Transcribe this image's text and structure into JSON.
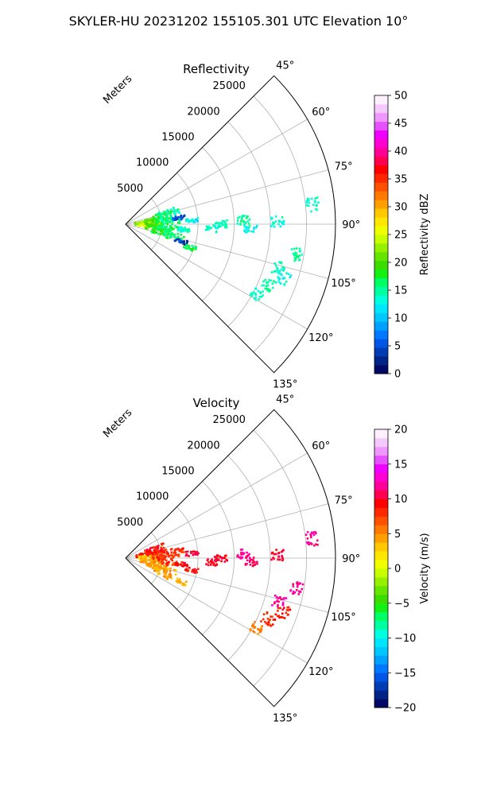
{
  "figure": {
    "suptitle": "SKYLER-HU  20231202  155105.301 UTC Elevation 10°"
  },
  "chart_data": [
    {
      "type": "heatmap",
      "subtype": "polar-sector",
      "title": "Reflectivity",
      "radial_label": "Meters",
      "theta_ticks": [
        "45°",
        "60°",
        "75°",
        "90°",
        "105°",
        "120°",
        "135°"
      ],
      "theta_values_deg": [
        45,
        60,
        75,
        90,
        105,
        120,
        135
      ],
      "theta_range_deg": [
        45,
        135
      ],
      "r_ticks": [
        "5000",
        "10000",
        "15000",
        "20000",
        "25000"
      ],
      "r_values": [
        5000,
        10000,
        15000,
        20000,
        25000
      ],
      "r_range": [
        0,
        29000
      ],
      "grid": true,
      "colorbar": {
        "label": "Reflectivity dBZ",
        "ticks": [
          "0",
          "5",
          "10",
          "15",
          "20",
          "25",
          "30",
          "35",
          "40",
          "45",
          "50"
        ],
        "tick_values": [
          0,
          5,
          10,
          15,
          20,
          25,
          30,
          35,
          40,
          45,
          50
        ],
        "range": [
          0,
          50
        ],
        "colors": [
          "#000a64",
          "#002387",
          "#003cb4",
          "#0055e6",
          "#0078ff",
          "#00a0ff",
          "#00c8ff",
          "#00e6ff",
          "#00ffdc",
          "#00ffa0",
          "#00ff64",
          "#14f014",
          "#3cdc00",
          "#64e600",
          "#96f000",
          "#c8ff00",
          "#f0ff00",
          "#ffe600",
          "#ffc800",
          "#ffa000",
          "#ff7800",
          "#ff5000",
          "#ff2800",
          "#ff0000",
          "#ff0050",
          "#ff0096",
          "#ff00d2",
          "#f000ff",
          "#e650ff",
          "#f096ff",
          "#f5c8ff",
          "#fff0ff"
        ]
      },
      "echoes": [
        {
          "theta": 88,
          "r": 2800,
          "value": 22
        },
        {
          "theta": 92,
          "r": 3300,
          "value": 25
        },
        {
          "theta": 85,
          "r": 4200,
          "value": 20
        },
        {
          "theta": 95,
          "r": 4300,
          "value": 20
        },
        {
          "theta": 80,
          "r": 5200,
          "value": 18
        },
        {
          "theta": 100,
          "r": 5200,
          "value": 18
        },
        {
          "theta": 90,
          "r": 6000,
          "value": 16
        },
        {
          "theta": 78,
          "r": 6200,
          "value": 15
        },
        {
          "theta": 102,
          "r": 6800,
          "value": 16
        },
        {
          "theta": 83,
          "r": 7400,
          "value": 5
        },
        {
          "theta": 95,
          "r": 8200,
          "value": 14
        },
        {
          "theta": 107,
          "r": 8000,
          "value": 4
        },
        {
          "theta": 87,
          "r": 9200,
          "value": 12
        },
        {
          "theta": 110,
          "r": 9500,
          "value": 17
        },
        {
          "theta": 93,
          "r": 12000,
          "value": 13
        },
        {
          "theta": 90,
          "r": 13200,
          "value": 14
        },
        {
          "theta": 88,
          "r": 16300,
          "value": 15
        },
        {
          "theta": 92,
          "r": 17300,
          "value": 13
        },
        {
          "theta": 89,
          "r": 21000,
          "value": 13
        },
        {
          "theta": 84,
          "r": 26000,
          "value": 14
        },
        {
          "theta": 100,
          "r": 24000,
          "value": 15
        },
        {
          "theta": 106,
          "r": 22000,
          "value": 14
        },
        {
          "theta": 109,
          "r": 23000,
          "value": 13
        },
        {
          "theta": 113,
          "r": 21500,
          "value": 15
        },
        {
          "theta": 118,
          "r": 20500,
          "value": 14
        }
      ]
    },
    {
      "type": "heatmap",
      "subtype": "polar-sector",
      "title": "Velocity",
      "radial_label": "Meters",
      "theta_ticks": [
        "45°",
        "60°",
        "75°",
        "90°",
        "105°",
        "120°",
        "135°"
      ],
      "theta_values_deg": [
        45,
        60,
        75,
        90,
        105,
        120,
        135
      ],
      "theta_range_deg": [
        45,
        135
      ],
      "r_ticks": [
        "5000",
        "10000",
        "15000",
        "20000",
        "25000"
      ],
      "r_values": [
        5000,
        10000,
        15000,
        20000,
        25000
      ],
      "r_range": [
        0,
        29000
      ],
      "grid": true,
      "colorbar": {
        "label": "Velocity (m/s)",
        "ticks": [
          "−20",
          "−15",
          "−10",
          "−5",
          "0",
          "5",
          "10",
          "15",
          "20"
        ],
        "tick_values": [
          -20,
          -15,
          -10,
          -5,
          0,
          5,
          10,
          15,
          20
        ],
        "range": [
          -20,
          20
        ],
        "colors": [
          "#000a64",
          "#002387",
          "#003cb4",
          "#0055e6",
          "#0078ff",
          "#00a0ff",
          "#00c8ff",
          "#00e6ff",
          "#00ffdc",
          "#00ffa0",
          "#00ff64",
          "#14f014",
          "#3cdc00",
          "#64e600",
          "#96f000",
          "#c8ff00",
          "#f0ff00",
          "#ffe600",
          "#ffc800",
          "#ffa000",
          "#ff7800",
          "#ff5000",
          "#ff2800",
          "#ff0000",
          "#ff0050",
          "#ff0096",
          "#ff00d2",
          "#f000ff",
          "#e650ff",
          "#f096ff",
          "#f5c8ff",
          "#fff0ff"
        ]
      },
      "echoes": [
        {
          "theta": 80,
          "r": 3000,
          "value": 9
        },
        {
          "theta": 90,
          "r": 3300,
          "value": 3
        },
        {
          "theta": 98,
          "r": 3500,
          "value": 4
        },
        {
          "theta": 75,
          "r": 4200,
          "value": 9
        },
        {
          "theta": 104,
          "r": 4500,
          "value": 5
        },
        {
          "theta": 85,
          "r": 5200,
          "value": 8
        },
        {
          "theta": 110,
          "r": 5800,
          "value": 4
        },
        {
          "theta": 93,
          "r": 6000,
          "value": 8
        },
        {
          "theta": 82,
          "r": 7200,
          "value": 8
        },
        {
          "theta": 96,
          "r": 7800,
          "value": 9
        },
        {
          "theta": 113,
          "r": 8200,
          "value": 4
        },
        {
          "theta": 86,
          "r": 9200,
          "value": 10
        },
        {
          "theta": 100,
          "r": 9300,
          "value": 9
        },
        {
          "theta": 93,
          "r": 12000,
          "value": 10
        },
        {
          "theta": 90,
          "r": 13200,
          "value": 10
        },
        {
          "theta": 88,
          "r": 16300,
          "value": 12
        },
        {
          "theta": 92,
          "r": 17300,
          "value": 11
        },
        {
          "theta": 89,
          "r": 21000,
          "value": 10
        },
        {
          "theta": 84,
          "r": 26000,
          "value": 12
        },
        {
          "theta": 100,
          "r": 24000,
          "value": 12
        },
        {
          "theta": 106,
          "r": 22000,
          "value": 12
        },
        {
          "theta": 109,
          "r": 23000,
          "value": 9
        },
        {
          "theta": 113,
          "r": 21500,
          "value": 8
        },
        {
          "theta": 118,
          "r": 20500,
          "value": 5
        }
      ]
    }
  ]
}
